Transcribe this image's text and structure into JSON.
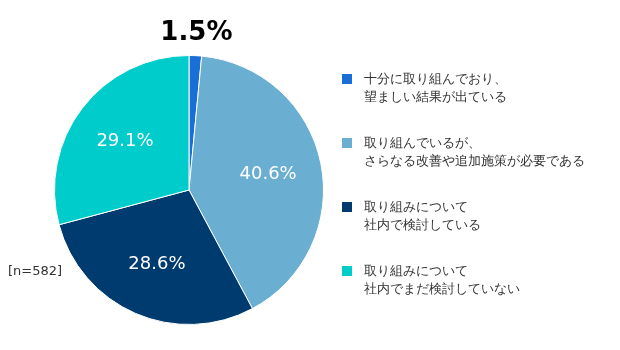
{
  "chart_data": {
    "type": "pie",
    "categories": [
      [
        "十分に取り組んでおり、",
        "望ましい結果が出ている"
      ],
      [
        "取り組んでいるが、",
        "さらなる改善や追加施策が必要である"
      ],
      [
        "取り組みについて",
        "社内で検討している"
      ],
      [
        "取り組みについて",
        "社内でまだ検討していない"
      ]
    ],
    "values": [
      1.5,
      40.6,
      28.6,
      29.1
    ],
    "value_labels": [
      "1.5%",
      "40.6%",
      "28.6%",
      "29.1%"
    ],
    "colors": [
      "#1a6fd6",
      "#6aaed2",
      "#003b6f",
      "#00cccc"
    ],
    "data_labels": true,
    "legend": "right",
    "annotation": "[n=582]"
  }
}
